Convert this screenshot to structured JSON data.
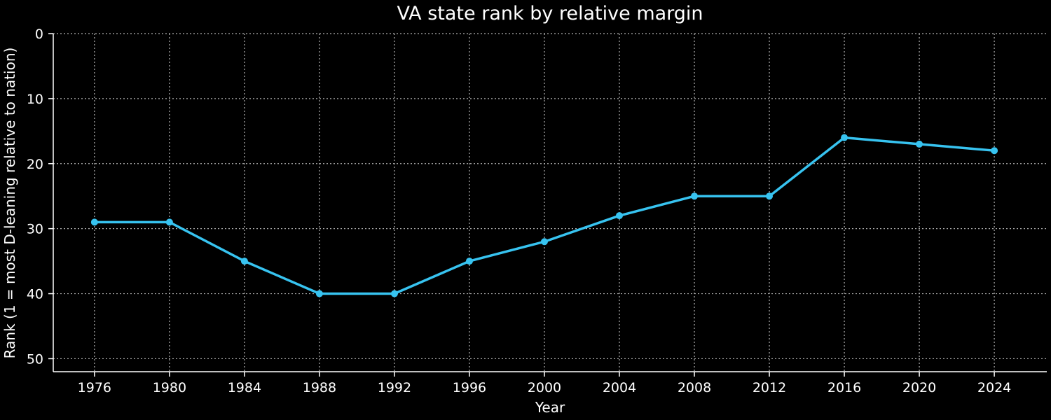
{
  "colors": {
    "background": "#000000",
    "text": "#ffffff",
    "grid": "#b0b0b0",
    "axis": "#ffffff",
    "line": "#37c3f0"
  },
  "chart_data": {
    "type": "line",
    "title": "VA state rank by relative margin",
    "xlabel": "Year",
    "ylabel": "Rank (1 = most D-leaning relative to nation)",
    "x": [
      1976,
      1980,
      1984,
      1988,
      1992,
      1996,
      2000,
      2004,
      2008,
      2012,
      2016,
      2020,
      2024
    ],
    "series": [
      {
        "values": [
          29,
          29,
          35,
          40,
          40,
          35,
          32,
          28,
          25,
          25,
          16,
          17,
          18
        ],
        "color": "#37c3f0",
        "marker": "circle"
      }
    ],
    "xlim": [
      1973.8,
      2026.8
    ],
    "ylim": [
      52,
      0
    ],
    "y_inverted": true,
    "xticks": [
      "1976",
      "1980",
      "1984",
      "1988",
      "1992",
      "1996",
      "2000",
      "2004",
      "2008",
      "2012",
      "2016",
      "2020",
      "2024"
    ],
    "yticks": [
      "0",
      "10",
      "20",
      "30",
      "40",
      "50"
    ],
    "grid": true,
    "grid_style": "dotted",
    "legend": "none"
  }
}
